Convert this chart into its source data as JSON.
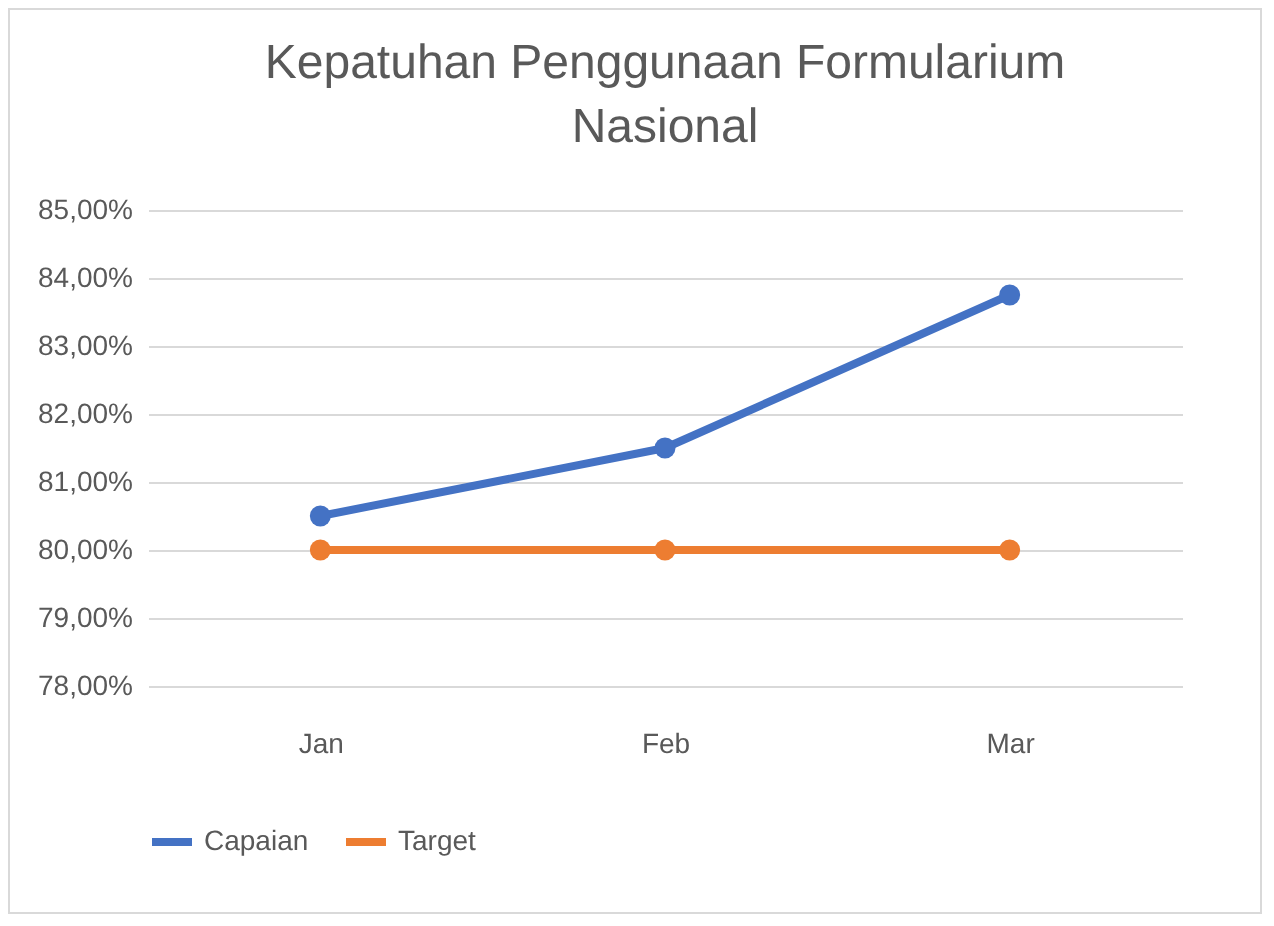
{
  "chart_data": {
    "type": "line",
    "title": "Kepatuhan Penggunaan Formularium Nasional",
    "categories": [
      "Jan",
      "Feb",
      "Mar"
    ],
    "series": [
      {
        "name": "Capaian",
        "color": "#4472c4",
        "values": [
          80.5,
          81.5,
          83.75
        ]
      },
      {
        "name": "Target",
        "color": "#ed7d31",
        "values": [
          80,
          80,
          80
        ]
      }
    ],
    "ylim": [
      78,
      85
    ],
    "yticks": [
      {
        "value": 78,
        "label": "78,00%"
      },
      {
        "value": 79,
        "label": "79,00%"
      },
      {
        "value": 80,
        "label": "80,00%"
      },
      {
        "value": 81,
        "label": "81,00%"
      },
      {
        "value": 82,
        "label": "82,00%"
      },
      {
        "value": 83,
        "label": "83,00%"
      },
      {
        "value": 84,
        "label": "84,00%"
      },
      {
        "value": 85,
        "label": "85,00%"
      }
    ],
    "grid": "y",
    "legend": "bottom",
    "marker": "circle",
    "line_style": "solid"
  }
}
